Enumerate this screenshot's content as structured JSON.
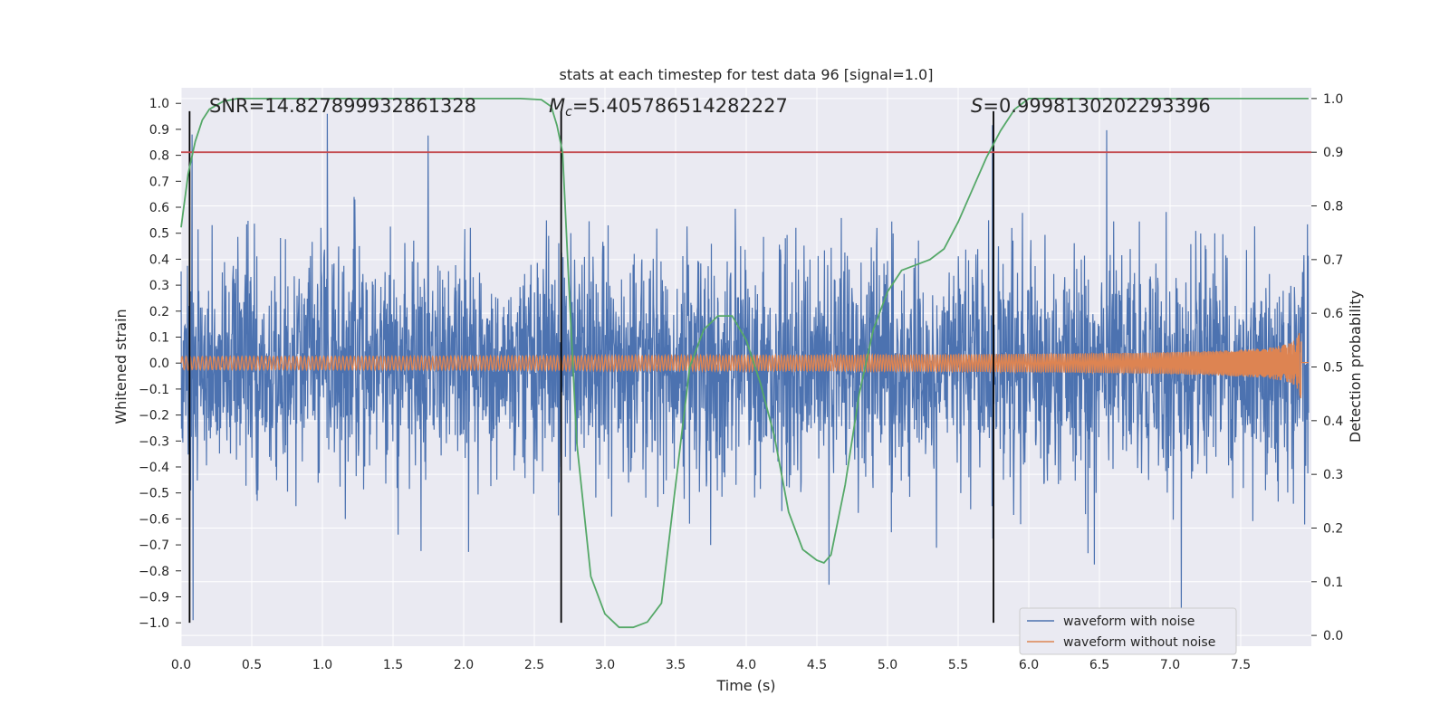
{
  "chart_data": {
    "type": "line",
    "title": "stats at each timestep for test data 96 [signal=1.0]",
    "xlabel": "Time (s)",
    "ylabel": "Whitened strain",
    "y2label": "Detection probability",
    "xlim": [
      0,
      8.0
    ],
    "ylim": [
      -1.09,
      1.06
    ],
    "y2lim": [
      -0.02,
      1.02
    ],
    "xticks": [
      0.0,
      0.5,
      1.0,
      1.5,
      2.0,
      2.5,
      3.0,
      3.5,
      4.0,
      4.5,
      5.0,
      5.5,
      6.0,
      6.5,
      7.0,
      7.5
    ],
    "yticks": [
      -1.0,
      -0.9,
      -0.8,
      -0.7,
      -0.6,
      -0.5,
      -0.4,
      -0.3,
      -0.2,
      -0.1,
      0.0,
      0.1,
      0.2,
      0.3,
      0.4,
      0.5,
      0.6,
      0.7,
      0.8,
      0.9,
      1.0
    ],
    "y2ticks": [
      0.0,
      0.1,
      0.2,
      0.3,
      0.4,
      0.5,
      0.6,
      0.7,
      0.8,
      0.9,
      1.0
    ],
    "grid": true,
    "annotations": [
      {
        "text": "SNR=14.827899932861328",
        "x": 0.2,
        "y": 1.0
      },
      {
        "text": "M",
        "sub": "c",
        "rest": "=5.405786514282227",
        "x": 2.6,
        "y": 1.0
      },
      {
        "text": "S",
        "rest": "=0.9998130202293396",
        "x": 5.6,
        "y": 1.0
      }
    ],
    "vertical_lines": [
      {
        "x": 0.06,
        "y_range": [
          -1.0,
          0.97
        ]
      },
      {
        "x": 2.69,
        "y_range": [
          -1.0,
          0.97
        ]
      },
      {
        "x": 5.75,
        "y_range": [
          -1.0,
          0.97
        ]
      }
    ],
    "threshold_line": {
      "y2": 0.9,
      "color": "#C44E52"
    },
    "series": [
      {
        "name": "waveform with noise",
        "color": "#4C72B0",
        "axis": "left",
        "description": "whitened strain with noise, amplitude roughly +/-0.5 with spikes to ~0.95"
      },
      {
        "name": "waveform without noise",
        "color": "#DD8452",
        "axis": "left",
        "chirp": {
          "start_amp": 0.025,
          "end_amp": 0.48,
          "t_merge": 7.93,
          "start_freq": 35
        }
      },
      {
        "name": "Detection probability",
        "color": "#55A868",
        "axis": "right",
        "x": [
          0.0,
          0.05,
          0.1,
          0.15,
          0.2,
          0.3,
          0.4,
          0.6,
          1.0,
          1.5,
          2.0,
          2.4,
          2.55,
          2.62,
          2.66,
          2.7,
          2.74,
          2.8,
          2.9,
          3.0,
          3.1,
          3.2,
          3.3,
          3.4,
          3.5,
          3.6,
          3.7,
          3.8,
          3.9,
          4.0,
          4.1,
          4.2,
          4.3,
          4.4,
          4.5,
          4.55,
          4.6,
          4.7,
          4.8,
          4.9,
          5.0,
          5.1,
          5.2,
          5.3,
          5.4,
          5.5,
          5.6,
          5.7,
          5.8,
          5.9,
          6.0,
          6.1,
          6.2,
          6.5,
          7.0,
          7.5,
          7.98
        ],
        "y": [
          0.76,
          0.86,
          0.92,
          0.96,
          0.98,
          0.995,
          1.0,
          1.0,
          1.0,
          1.0,
          1.0,
          1.0,
          0.998,
          0.985,
          0.95,
          0.9,
          0.68,
          0.36,
          0.11,
          0.04,
          0.015,
          0.015,
          0.025,
          0.06,
          0.28,
          0.5,
          0.57,
          0.595,
          0.595,
          0.55,
          0.47,
          0.37,
          0.23,
          0.16,
          0.14,
          0.135,
          0.15,
          0.28,
          0.45,
          0.57,
          0.64,
          0.68,
          0.69,
          0.7,
          0.72,
          0.77,
          0.83,
          0.89,
          0.94,
          0.98,
          1.0,
          1.0,
          1.0,
          1.0,
          1.0,
          1.0,
          1.0
        ]
      }
    ],
    "legend": {
      "position": "lower-right"
    }
  }
}
